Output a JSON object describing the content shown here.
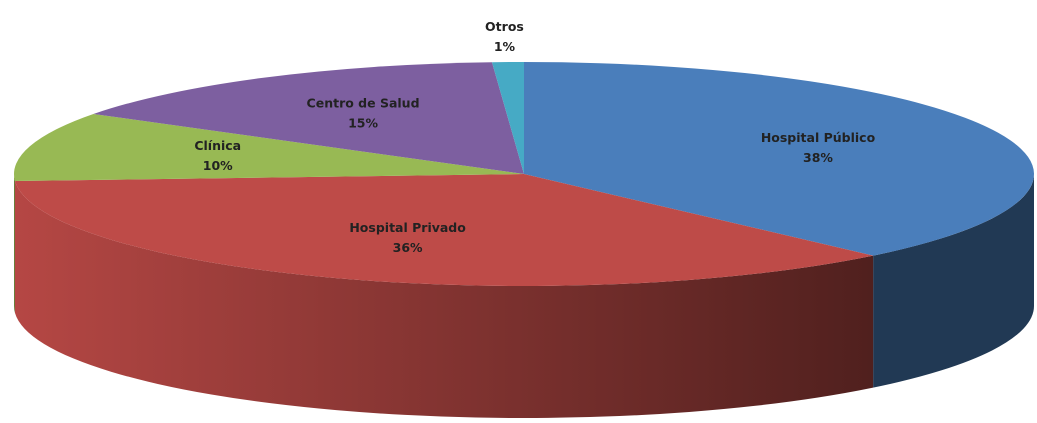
{
  "chart_data": {
    "type": "pie",
    "three_d": true,
    "categories": [
      "Hospital Público",
      "Hospital Privado",
      "Clínica",
      "Centro de Salud",
      "Otros"
    ],
    "values": [
      38,
      36,
      10,
      15,
      1
    ],
    "value_labels": [
      "38%",
      "36%",
      "10%",
      "15%",
      "1%"
    ],
    "colors": [
      "#4a7ebb",
      "#be4b48",
      "#98b954",
      "#7d5fa0",
      "#46aac5"
    ]
  }
}
